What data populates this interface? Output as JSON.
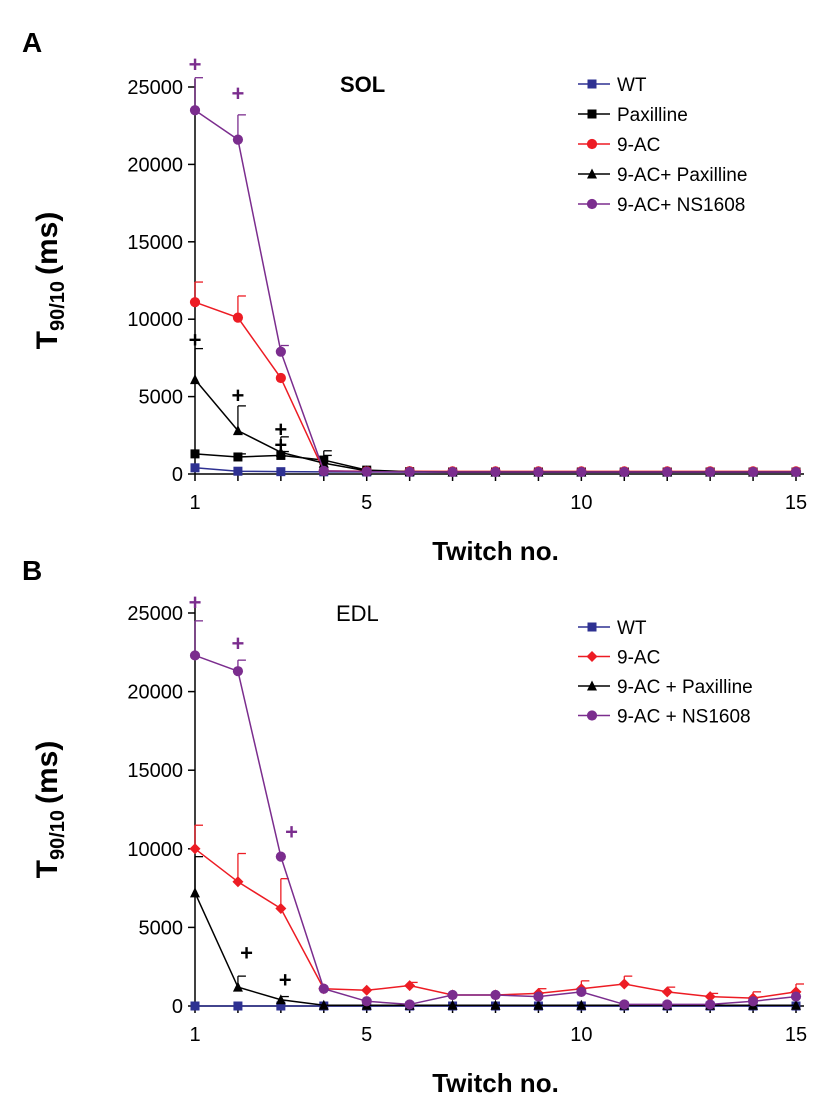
{
  "colors": {
    "WT": "#2e3192",
    "Paxilline": "#000000",
    "9-AC": "#ed1c24",
    "9-AC+Paxilline": "#000000",
    "9-AC+NS1608": "#7b2d8e"
  },
  "chart_data": [
    {
      "type": "line",
      "panel": "A",
      "title": "SOL",
      "title_bold": true,
      "xlabel": "Twitch no.",
      "ylabel_main": "T",
      "ylabel_sub": "90/10",
      "ylabel_unit": "(ms)",
      "xlim": [
        1,
        15
      ],
      "ylim": [
        0,
        25000
      ],
      "x_ticks": [
        1,
        5,
        10,
        15
      ],
      "y_ticks": [
        0,
        5000,
        10000,
        15000,
        20000,
        25000
      ],
      "legend_position": "top-right",
      "series": [
        {
          "name": "WT",
          "color_key": "WT",
          "marker": "square",
          "x": [
            1,
            2,
            3,
            4,
            5,
            6,
            7,
            8,
            9,
            10,
            11,
            12,
            13,
            14,
            15
          ],
          "values": [
            400,
            180,
            150,
            140,
            130,
            120,
            120,
            120,
            120,
            120,
            120,
            120,
            120,
            120,
            120
          ],
          "err": [
            0,
            0,
            0,
            0,
            0,
            0,
            0,
            0,
            0,
            0,
            0,
            0,
            0,
            0,
            0
          ]
        },
        {
          "name": "Paxilline",
          "color_key": "Paxilline",
          "marker": "square",
          "x": [
            1,
            2,
            3,
            4,
            5,
            6,
            7,
            8,
            9,
            10,
            11,
            12,
            13,
            14,
            15
          ],
          "values": [
            1300,
            1100,
            1200,
            900,
            250,
            150,
            130,
            130,
            130,
            130,
            130,
            130,
            130,
            130,
            130
          ],
          "err": [
            0,
            200,
            250,
            600,
            0,
            0,
            0,
            0,
            0,
            0,
            0,
            0,
            0,
            0,
            0
          ]
        },
        {
          "name": "9-AC",
          "color_key": "9-AC",
          "marker": "circle",
          "x": [
            1,
            2,
            3,
            4,
            5,
            6,
            7,
            8,
            9,
            10,
            11,
            12,
            13,
            14,
            15
          ],
          "values": [
            11100,
            10100,
            6200,
            200,
            180,
            180,
            170,
            170,
            170,
            170,
            170,
            170,
            170,
            170,
            170
          ],
          "err": [
            1300,
            1400,
            0,
            0,
            0,
            0,
            0,
            0,
            0,
            0,
            0,
            0,
            0,
            0,
            0
          ]
        },
        {
          "name": "9-AC+ Paxilline",
          "color_key": "9-AC+Paxilline",
          "marker": "triangle",
          "x": [
            1,
            2,
            3,
            4,
            5,
            6,
            7,
            8,
            9,
            10,
            11,
            12,
            13,
            14,
            15
          ],
          "values": [
            6100,
            2800,
            1400,
            700,
            200,
            150,
            130,
            130,
            130,
            130,
            130,
            130,
            130,
            130,
            130
          ],
          "err": [
            2000,
            1600,
            1000,
            500,
            0,
            0,
            0,
            0,
            0,
            0,
            0,
            0,
            0,
            0,
            0
          ]
        },
        {
          "name": "9-AC+ NS1608",
          "color_key": "9-AC+NS1608",
          "marker": "circle",
          "x": [
            1,
            2,
            3,
            4,
            5,
            6,
            7,
            8,
            9,
            10,
            11,
            12,
            13,
            14,
            15
          ],
          "values": [
            23500,
            21600,
            7900,
            200,
            150,
            140,
            130,
            130,
            130,
            130,
            130,
            130,
            130,
            130,
            130
          ],
          "err": [
            2100,
            1600,
            400,
            0,
            0,
            0,
            0,
            0,
            0,
            0,
            0,
            0,
            0,
            0,
            0
          ]
        }
      ],
      "annotations": [
        {
          "text": "+",
          "x": 1,
          "y": 26500,
          "color_key": "9-AC+NS1608"
        },
        {
          "text": "+",
          "x": 2,
          "y": 24600,
          "color_key": "9-AC+NS1608"
        },
        {
          "text": "+",
          "x": 1,
          "y": 8700,
          "color_key": "9-AC+Paxilline"
        },
        {
          "text": "+",
          "x": 2,
          "y": 5100,
          "color_key": "9-AC+Paxilline"
        },
        {
          "text": "+",
          "x": 3,
          "y": 2900,
          "color_key": "9-AC+Paxilline"
        },
        {
          "text": "+",
          "x": 3,
          "y": 1900,
          "color_key": "9-AC+Paxilline"
        }
      ]
    },
    {
      "type": "line",
      "panel": "B",
      "title": "EDL",
      "title_bold": false,
      "xlabel": "Twitch no.",
      "ylabel_main": "T",
      "ylabel_sub": "90/10",
      "ylabel_unit": "(ms)",
      "xlim": [
        1,
        15
      ],
      "ylim": [
        0,
        25000
      ],
      "x_ticks": [
        1,
        5,
        10,
        15
      ],
      "y_ticks": [
        0,
        5000,
        10000,
        15000,
        20000,
        25000
      ],
      "legend_position": "top-right",
      "series": [
        {
          "name": "WT",
          "color_key": "WT",
          "marker": "square",
          "x": [
            1,
            2,
            3,
            4,
            5,
            6,
            7,
            8,
            9,
            10,
            11,
            12,
            13,
            14,
            15
          ],
          "values": [
            0,
            0,
            0,
            0,
            0,
            0,
            0,
            0,
            0,
            0,
            0,
            0,
            0,
            0,
            0
          ],
          "err": [
            0,
            0,
            0,
            0,
            0,
            0,
            0,
            0,
            0,
            0,
            0,
            0,
            0,
            0,
            0
          ]
        },
        {
          "name": "9-AC",
          "color_key": "9-AC",
          "marker": "diamond",
          "x": [
            1,
            2,
            3,
            4,
            5,
            6,
            7,
            8,
            9,
            10,
            11,
            12,
            13,
            14,
            15
          ],
          "values": [
            10000,
            7900,
            6200,
            1100,
            1000,
            1300,
            700,
            700,
            800,
            1100,
            1400,
            900,
            600,
            500,
            900
          ],
          "err": [
            1500,
            1800,
            1900,
            0,
            0,
            200,
            0,
            0,
            300,
            500,
            500,
            300,
            200,
            400,
            500
          ]
        },
        {
          "name": "9-AC + Paxilline",
          "color_key": "9-AC+Paxilline",
          "marker": "triangle",
          "x": [
            1,
            2,
            3,
            4,
            5,
            6,
            7,
            8,
            9,
            10,
            11,
            12,
            13,
            14,
            15
          ],
          "values": [
            7200,
            1200,
            400,
            50,
            50,
            50,
            50,
            50,
            50,
            50,
            50,
            50,
            50,
            50,
            50
          ],
          "err": [
            2300,
            700,
            200,
            0,
            0,
            0,
            0,
            0,
            0,
            0,
            0,
            0,
            0,
            0,
            0
          ]
        },
        {
          "name": "9-AC + NS1608",
          "color_key": "9-AC+NS1608",
          "marker": "circle",
          "x": [
            1,
            2,
            3,
            4,
            5,
            6,
            7,
            8,
            9,
            10,
            11,
            12,
            13,
            14,
            15
          ],
          "values": [
            22300,
            21300,
            9500,
            1100,
            300,
            100,
            700,
            700,
            600,
            900,
            100,
            100,
            100,
            300,
            600
          ],
          "err": [
            2200,
            700,
            0,
            0,
            0,
            0,
            0,
            0,
            0,
            0,
            0,
            0,
            0,
            0,
            0
          ]
        }
      ],
      "annotations": [
        {
          "text": "+",
          "x": 1,
          "y": 25700,
          "color_key": "9-AC+NS1608"
        },
        {
          "text": "+",
          "x": 2,
          "y": 23100,
          "color_key": "9-AC+NS1608"
        },
        {
          "text": "+",
          "x": 3.25,
          "y": 11100,
          "color_key": "9-AC+NS1608"
        },
        {
          "text": "+",
          "x": 2.2,
          "y": 3400,
          "color_key": "9-AC+Paxilline"
        },
        {
          "text": "+",
          "x": 3.1,
          "y": 1700,
          "color_key": "9-AC+Paxilline"
        }
      ]
    }
  ]
}
